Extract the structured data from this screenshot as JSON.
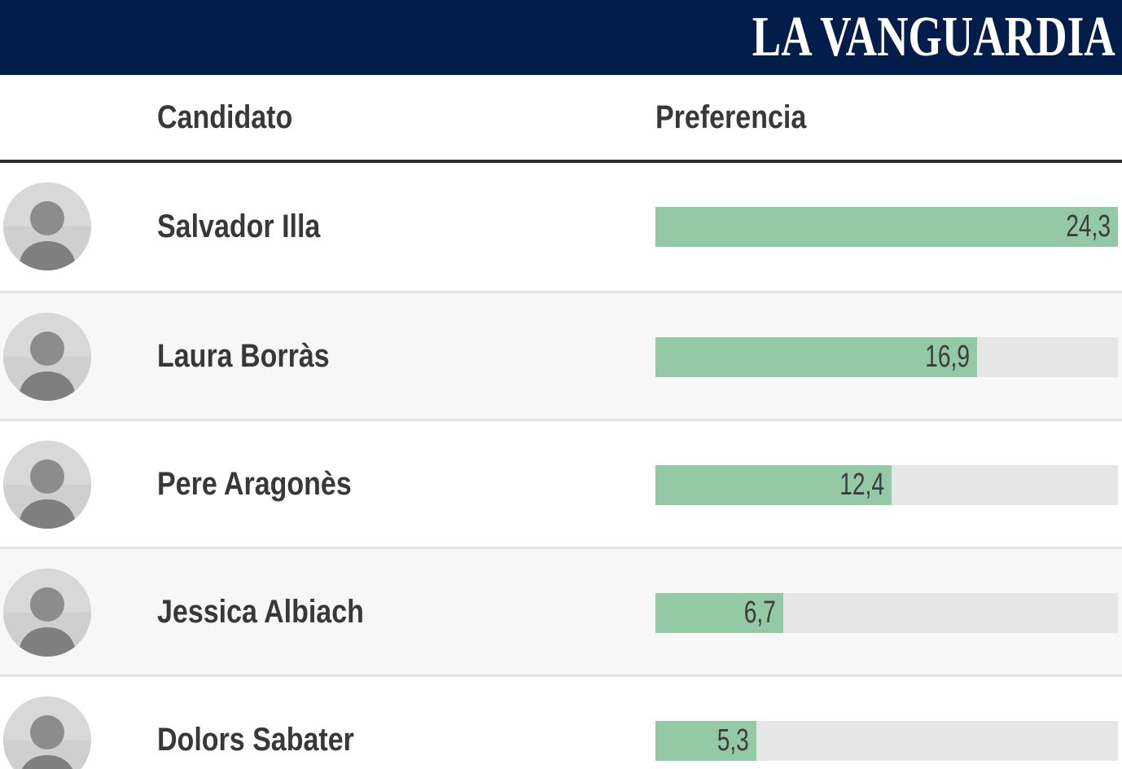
{
  "brand": {
    "logo_text": "LA VANGUARDIA"
  },
  "table": {
    "columns": [
      "Candidato",
      "Preferencia"
    ]
  },
  "chart_data": {
    "type": "bar",
    "orientation": "horizontal",
    "title": "",
    "columns": [
      "Candidato",
      "Preferencia"
    ],
    "categories": [
      "Salvador Illa",
      "Laura Borràs",
      "Pere Aragonès",
      "Jessica Albiach",
      "Dolors Sabater"
    ],
    "values": [
      24.3,
      16.9,
      12.4,
      6.7,
      5.3
    ],
    "value_labels": [
      "24,3",
      "16,9",
      "12,4",
      "6,7",
      "5,3"
    ],
    "xlim": [
      0,
      24.3
    ],
    "grid": false,
    "legend": false,
    "bar_color": "#93c9a4",
    "track_color": "#e6e6e6"
  },
  "colors": {
    "header_bg": "#021d49",
    "logo_text": "#ffffff",
    "heading_text": "#383838",
    "value_text": "#3d3d3d",
    "bar_fill": "#93c9a4",
    "bar_track": "#e6e6e6",
    "row_alt_bg": "#f7f7f7",
    "row_separator": "#e5e5e5",
    "header_rule": "#2d2d2d"
  }
}
